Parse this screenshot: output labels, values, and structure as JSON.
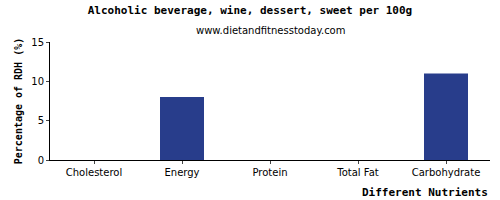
{
  "chart_data": {
    "type": "bar",
    "title": "Alcoholic beverage, wine, dessert, sweet per 100g",
    "subtitle": "www.dietandfitnesstoday.com",
    "x_label": "Different Nutrients",
    "y_label": "Percentage of RDH (%)",
    "categories": [
      "Cholesterol",
      "Energy",
      "Protein",
      "Total Fat",
      "Carbohydrate"
    ],
    "values": [
      0,
      8,
      0,
      0,
      11
    ],
    "color": "#283d8b",
    "ylim": [
      0,
      15
    ],
    "yticks": [
      0,
      5,
      10,
      15
    ],
    "grid": false
  }
}
